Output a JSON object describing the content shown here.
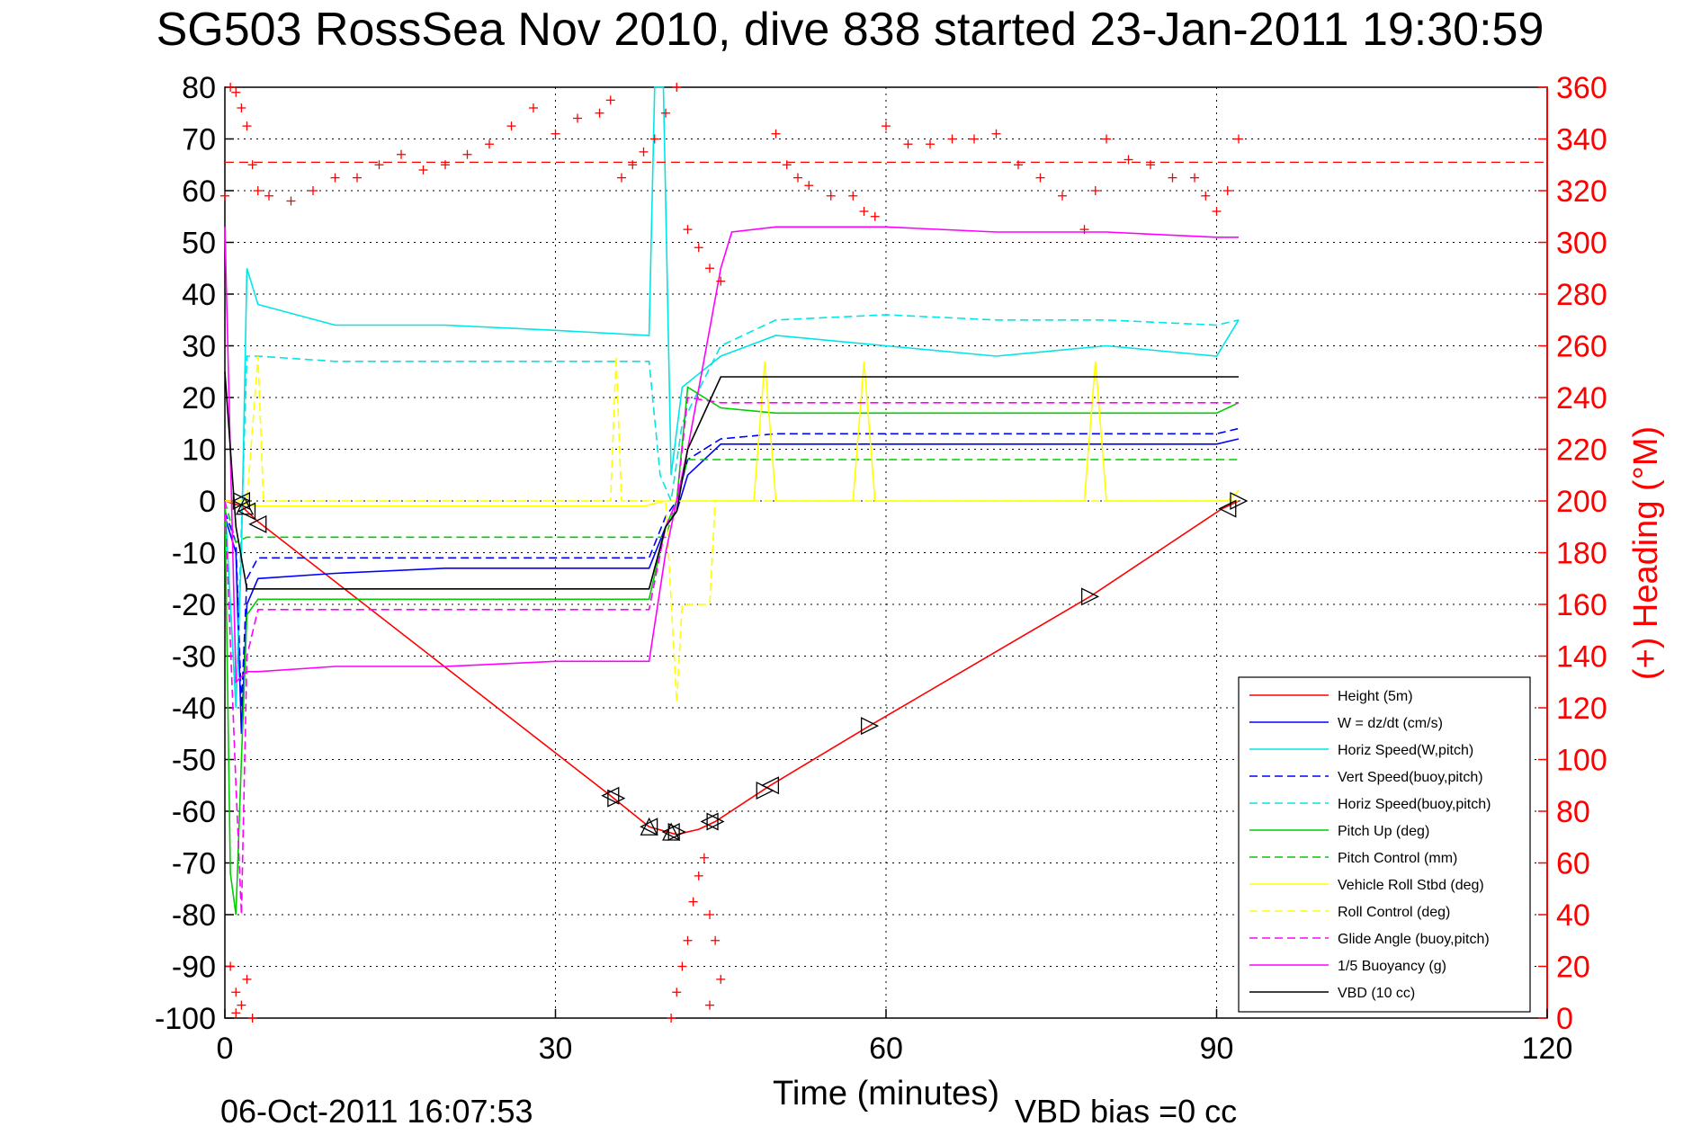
{
  "chart_data": {
    "type": "line",
    "title": "SG503 RossSea Nov 2010, dive 838 started 23-Jan-2011 19:30:59",
    "xlabel": "Time (minutes)",
    "ylabel": "",
    "ylabel_right": "(+) Heading (°M)",
    "xlim": [
      0,
      120
    ],
    "ylim": [
      -100,
      80
    ],
    "ylim_right": [
      0,
      360
    ],
    "xticks": [
      0,
      30,
      60,
      90,
      120
    ],
    "yticks": [
      -100,
      -90,
      -80,
      -70,
      -60,
      -50,
      -40,
      -30,
      -20,
      -10,
      0,
      10,
      20,
      30,
      40,
      50,
      60,
      70,
      80
    ],
    "yticks_right": [
      0,
      20,
      40,
      60,
      80,
      100,
      120,
      140,
      160,
      180,
      200,
      220,
      240,
      260,
      280,
      300,
      320,
      340,
      360
    ],
    "grid": true,
    "legend_position": "bottom-right",
    "footer_left": "06-Oct-2011 16:07:53",
    "footer_right": "VBD bias =0 cc",
    "series": [
      {
        "name": "Height (5m)",
        "color": "#ff0000",
        "style": "solid",
        "x": [
          0,
          1.5,
          3,
          35,
          38.5,
          41,
          43,
          44.5,
          49.5,
          58.5,
          78.5,
          90.5,
          92
        ],
        "y": [
          0,
          -1,
          -4,
          -57,
          -63,
          -64.5,
          -63.5,
          -62,
          -55,
          -43.5,
          -18.5,
          -1.5,
          0
        ]
      },
      {
        "name": "W = dz/dt (cm/s)",
        "color": "#0000ff",
        "style": "solid",
        "x": [
          0,
          1,
          1.5,
          2,
          3,
          10,
          20,
          30,
          38.5,
          40,
          41,
          42,
          45,
          50,
          60,
          70,
          80,
          90,
          92
        ],
        "y": [
          -3,
          -10,
          -45,
          -20,
          -15,
          -14,
          -13,
          -13,
          -13,
          -5,
          -2,
          5,
          11,
          11,
          11,
          11,
          11,
          11,
          12
        ]
      },
      {
        "name": "Horiz Speed(W,pitch)",
        "color": "#00e5e5",
        "style": "solid",
        "x": [
          0,
          1,
          1.5,
          2,
          3,
          10,
          20,
          30,
          38.5,
          39,
          39.8,
          40.5,
          41.5,
          45,
          50,
          60,
          70,
          80,
          90,
          92
        ],
        "y": [
          0,
          -40,
          -10,
          45,
          38,
          34,
          34,
          33,
          32,
          80,
          80,
          5,
          22,
          28,
          32,
          30,
          28,
          30,
          28,
          35
        ]
      },
      {
        "name": "Vert Speed(buoy,pitch)",
        "color": "#0000ff",
        "style": "dashed",
        "x": [
          0,
          1,
          1.5,
          2,
          3,
          10,
          20,
          30,
          38.5,
          40,
          41,
          42,
          45,
          50,
          60,
          70,
          80,
          90,
          92
        ],
        "y": [
          -2,
          -8,
          -40,
          -15,
          -11,
          -11,
          -11,
          -11,
          -11,
          -3,
          0,
          8,
          12,
          13,
          13,
          13,
          13,
          13,
          14
        ]
      },
      {
        "name": "Horiz Speed(buoy,pitch)",
        "color": "#00e5e5",
        "style": "dashed",
        "x": [
          0,
          1,
          1.5,
          2,
          3,
          10,
          20,
          30,
          38.5,
          39.5,
          40.5,
          41.5,
          45,
          50,
          60,
          70,
          80,
          90,
          92
        ],
        "y": [
          0,
          -40,
          -5,
          28,
          28,
          27,
          27,
          27,
          27,
          5,
          0,
          15,
          30,
          35,
          36,
          35,
          35,
          34,
          35
        ]
      },
      {
        "name": "Pitch Up (deg)",
        "color": "#00cc00",
        "style": "solid",
        "x": [
          0,
          0.5,
          1,
          1.5,
          2,
          3,
          10,
          20,
          30,
          38.5,
          40,
          41,
          42,
          45,
          50,
          60,
          70,
          80,
          90,
          92
        ],
        "y": [
          0,
          -72,
          -80,
          -50,
          -22,
          -19,
          -19,
          -19,
          -19,
          -19,
          -5,
          0,
          22,
          18,
          17,
          17,
          17,
          17,
          17,
          19
        ]
      },
      {
        "name": "Pitch Control (mm)",
        "color": "#00cc00",
        "style": "dashed",
        "x": [
          0,
          1,
          2,
          3,
          38.5,
          40,
          41,
          42,
          45,
          50,
          60,
          70,
          80,
          90,
          92
        ],
        "y": [
          0,
          -8,
          -7,
          -7,
          -7,
          -7,
          0,
          8,
          8,
          8,
          8,
          8,
          8,
          8,
          8
        ]
      },
      {
        "name": "Vehicle Roll Stbd (deg)",
        "color": "#ffff00",
        "style": "solid",
        "x": [
          0,
          3,
          10,
          20,
          30,
          38,
          40,
          42,
          48,
          49,
          50,
          57,
          58,
          59,
          60,
          70,
          78,
          79,
          80,
          90,
          91,
          92
        ],
        "y": [
          0,
          -1,
          -1,
          -1,
          -1,
          -1,
          0,
          0,
          0,
          27,
          0,
          0,
          27,
          0,
          0,
          0,
          0,
          27,
          0,
          0,
          0,
          2
        ]
      },
      {
        "name": "Roll Control (deg)",
        "color": "#ffff00",
        "style": "dashed",
        "x": [
          0,
          2,
          3,
          3.5,
          35,
          35.5,
          36,
          40,
          41,
          41.5,
          44,
          44.5,
          45,
          60,
          90,
          92
        ],
        "y": [
          0,
          0,
          28,
          0,
          0,
          28,
          0,
          0,
          -39,
          -20,
          -20,
          0,
          0,
          0,
          0,
          0
        ]
      },
      {
        "name": "Glide Angle (buoy,pitch)",
        "color": "#ff00ff",
        "style": "dashed",
        "x": [
          0,
          1,
          1.5,
          2,
          3,
          10,
          20,
          30,
          38.5,
          40,
          41,
          42,
          45,
          50,
          60,
          70,
          80,
          90,
          92
        ],
        "y": [
          0,
          -55,
          -80,
          -30,
          -21,
          -21,
          -21,
          -21,
          -21,
          -5,
          0,
          20,
          19,
          19,
          19,
          19,
          19,
          19,
          19
        ]
      },
      {
        "name": "1/5 Buoyancy (g)",
        "color": "#ff00ff",
        "style": "solid",
        "x": [
          0,
          1,
          2,
          3,
          10,
          20,
          30,
          38.5,
          40,
          41,
          42,
          45,
          46,
          50,
          60,
          70,
          80,
          90,
          92
        ],
        "y": [
          53,
          -35,
          -33,
          -33,
          -32,
          -32,
          -31,
          -31,
          -10,
          0,
          10,
          45,
          52,
          53,
          53,
          52,
          52,
          51,
          51
        ]
      },
      {
        "name": "VBD (10 cc)",
        "color": "#000000",
        "style": "solid",
        "x": [
          0,
          1,
          2,
          3,
          10,
          20,
          30,
          38.5,
          40,
          41,
          42,
          45,
          46,
          50,
          60,
          70,
          80,
          90,
          92
        ],
        "y": [
          25,
          -5,
          -17,
          -17,
          -17,
          -17,
          -17,
          -17,
          -5,
          -2,
          10,
          24,
          24,
          24,
          24,
          24,
          24,
          24,
          24
        ]
      }
    ],
    "heading_series": {
      "name": "(+) Heading (°M)",
      "color": "#ff0000",
      "marker": "+",
      "reference_line": 331,
      "points": [
        [
          0,
          318
        ],
        [
          0.5,
          360
        ],
        [
          1,
          358
        ],
        [
          1.5,
          352
        ],
        [
          2,
          345
        ],
        [
          2.5,
          330
        ],
        [
          3,
          320
        ],
        [
          4,
          318
        ],
        [
          6,
          316
        ],
        [
          8,
          320
        ],
        [
          10,
          325
        ],
        [
          12,
          325
        ],
        [
          14,
          330
        ],
        [
          16,
          334
        ],
        [
          18,
          328
        ],
        [
          20,
          330
        ],
        [
          22,
          334
        ],
        [
          24,
          338
        ],
        [
          26,
          345
        ],
        [
          28,
          352
        ],
        [
          30,
          342
        ],
        [
          32,
          348
        ],
        [
          34,
          350
        ],
        [
          35,
          355
        ],
        [
          36,
          325
        ],
        [
          37,
          330
        ],
        [
          38,
          335
        ],
        [
          39,
          340
        ],
        [
          40,
          350
        ],
        [
          41,
          360
        ],
        [
          42,
          305
        ],
        [
          43,
          298
        ],
        [
          44,
          290
        ],
        [
          45,
          285
        ],
        [
          50,
          342
        ],
        [
          51,
          330
        ],
        [
          52,
          325
        ],
        [
          53,
          322
        ],
        [
          55,
          318
        ],
        [
          57,
          318
        ],
        [
          58,
          312
        ],
        [
          59,
          310
        ],
        [
          60,
          345
        ],
        [
          62,
          338
        ],
        [
          64,
          338
        ],
        [
          66,
          340
        ],
        [
          68,
          340
        ],
        [
          70,
          342
        ],
        [
          72,
          330
        ],
        [
          74,
          325
        ],
        [
          76,
          318
        ],
        [
          78,
          305
        ],
        [
          79,
          320
        ],
        [
          80,
          340
        ],
        [
          82,
          332
        ],
        [
          84,
          330
        ],
        [
          86,
          325
        ],
        [
          88,
          325
        ],
        [
          89,
          318
        ],
        [
          90,
          312
        ],
        [
          91,
          320
        ],
        [
          92,
          340
        ],
        [
          40.5,
          0
        ],
        [
          41,
          10
        ],
        [
          41.5,
          20
        ],
        [
          42,
          30
        ],
        [
          42.5,
          45
        ],
        [
          43,
          55
        ],
        [
          43.5,
          62
        ],
        [
          44,
          40
        ],
        [
          44.5,
          30
        ],
        [
          45,
          15
        ],
        [
          44,
          5
        ],
        [
          0.5,
          20
        ],
        [
          1,
          10
        ],
        [
          1.5,
          5
        ],
        [
          2,
          15
        ],
        [
          2.5,
          0
        ],
        [
          1,
          2
        ]
      ]
    },
    "markers": [
      {
        "symbol": "left-triangle",
        "points": [
          [
            1.5,
            0
          ],
          [
            2,
            -2
          ],
          [
            3,
            -4.5
          ],
          [
            35,
            -57
          ],
          [
            38.5,
            -63
          ],
          [
            40.5,
            -64
          ],
          [
            44,
            -62
          ],
          [
            49.5,
            -55
          ],
          [
            91,
            -1.5
          ]
        ]
      },
      {
        "symbol": "right-triangle",
        "points": [
          [
            1.5,
            0
          ],
          [
            35.5,
            -57.5
          ],
          [
            41,
            -64
          ],
          [
            44.5,
            -62
          ],
          [
            49,
            -56
          ],
          [
            58.5,
            -43.5
          ],
          [
            78.5,
            -18.5
          ],
          [
            92,
            0
          ]
        ]
      },
      {
        "symbol": "up-triangle",
        "points": [
          [
            1.8,
            -1
          ],
          [
            38.5,
            -63
          ],
          [
            40.5,
            -64
          ]
        ]
      }
    ]
  }
}
